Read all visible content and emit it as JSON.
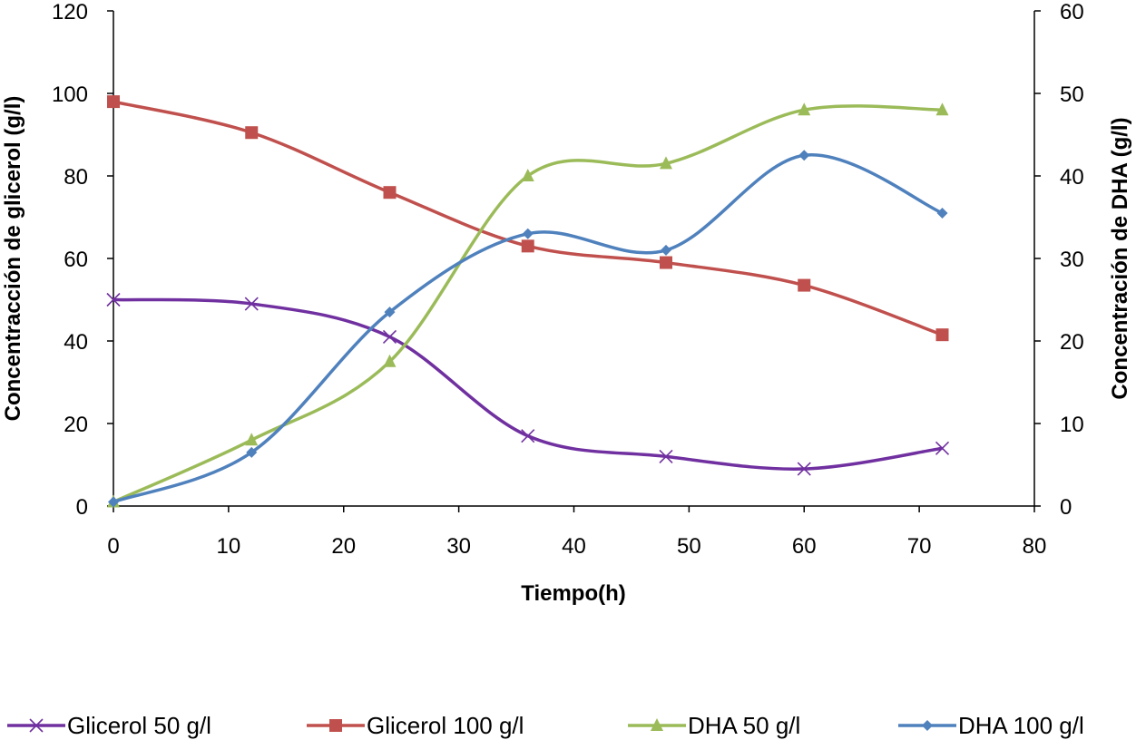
{
  "chart_data": {
    "type": "line",
    "title": "",
    "xlabel": "Tiempo(h)",
    "ylabel_left": "Concentracción de glicerol  (g/l)",
    "ylabel_right": "Concentración de DHA (g/l)",
    "xlim": [
      0,
      80
    ],
    "ylim_left": [
      0,
      120
    ],
    "ylim_right": [
      0,
      60
    ],
    "x_ticks": [
      "0",
      "10",
      "20",
      "30",
      "40",
      "50",
      "60",
      "70",
      "80"
    ],
    "y_ticks_left": [
      "0",
      "20",
      "40",
      "60",
      "80",
      "100",
      "120"
    ],
    "y_ticks_right": [
      "0",
      "10",
      "20",
      "30",
      "40",
      "50",
      "60"
    ],
    "grid": false,
    "legend_position": "bottom",
    "series": [
      {
        "name": "Glicerol  50  g/l",
        "axis": "left",
        "marker": "x",
        "color": "#7030A0",
        "x": [
          0,
          12,
          24,
          36,
          48,
          60,
          72
        ],
        "y": [
          50,
          49,
          41,
          17,
          12,
          9,
          14
        ]
      },
      {
        "name": "Glicerol  100  g/l",
        "axis": "left",
        "marker": "square",
        "color": "#C0504D",
        "x": [
          0,
          12,
          24,
          36,
          48,
          60,
          72
        ],
        "y": [
          98,
          90.5,
          76,
          63,
          59,
          53.5,
          41.5
        ]
      },
      {
        "name": "DHA  50 g/l",
        "axis": "right",
        "marker": "triangle",
        "color": "#9BBB59",
        "x": [
          0,
          12,
          24,
          36,
          48,
          60,
          72
        ],
        "y": [
          0.5,
          8,
          17.5,
          40,
          41.5,
          48,
          48
        ]
      },
      {
        "name": "DHA  100  g/l",
        "axis": "right",
        "marker": "diamond",
        "color": "#4F81BD",
        "x": [
          0,
          12,
          24,
          36,
          48,
          60,
          72
        ],
        "y": [
          0.5,
          6.5,
          23.5,
          33,
          31,
          42.5,
          35.5
        ]
      }
    ]
  }
}
